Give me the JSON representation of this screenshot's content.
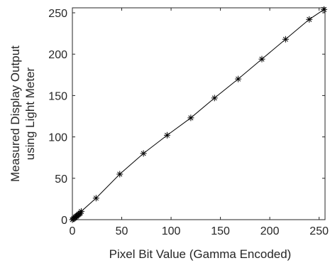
{
  "chart_data": {
    "type": "line",
    "title": "",
    "xlabel": "Pixel Bit Value (Gamma Encoded)",
    "ylabel_lines": [
      "Measured Display Output",
      "using Light Meter"
    ],
    "xlim": [
      0,
      256
    ],
    "ylim": [
      0,
      256
    ],
    "xticks": [
      0,
      50,
      100,
      150,
      200,
      250
    ],
    "yticks": [
      0,
      50,
      100,
      150,
      200,
      250
    ],
    "xtick_labels": [
      "0",
      "50",
      "100",
      "150",
      "200",
      "250"
    ],
    "ytick_labels": [
      "0",
      "50",
      "100",
      "150",
      "200",
      "250"
    ],
    "grid": false,
    "marker": "asterisk",
    "line_color": "#000000",
    "series": [
      {
        "x": [
          0,
          1,
          2,
          3,
          4,
          5,
          6,
          7,
          8,
          9,
          24,
          48,
          72,
          96,
          120,
          144,
          168,
          192,
          216,
          240,
          255
        ],
        "y": [
          0,
          1,
          2,
          3,
          4,
          5,
          6,
          7,
          8,
          10,
          26,
          55,
          80,
          102,
          123,
          147,
          170,
          194,
          218,
          242,
          254
        ]
      }
    ]
  }
}
